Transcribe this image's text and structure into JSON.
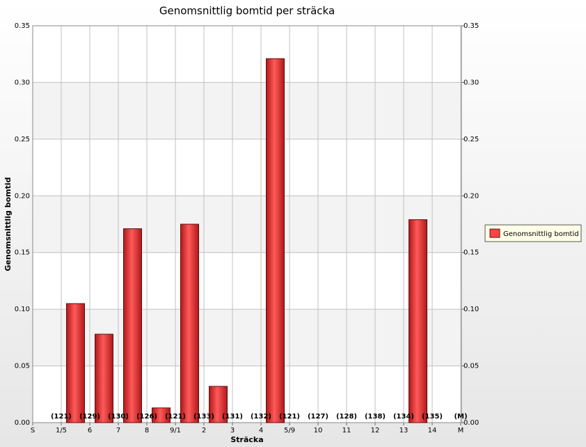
{
  "chart_data": {
    "type": "bar",
    "title": "Genomsnittlig bomtid per sträcka",
    "x_label": "Sträcka",
    "y_label": "Genomsnittlig bomtid",
    "categories": [
      "S",
      "1/5",
      "6",
      "7",
      "8",
      "9/1",
      "2",
      "3",
      "4",
      "5/9",
      "10",
      "11",
      "12",
      "13",
      "14",
      "M"
    ],
    "series": [
      {
        "name": "Genomsnittlig bomtid",
        "color": "#ff4444",
        "values": [
          null,
          0.105,
          0.078,
          0.171,
          0.013,
          0.175,
          0.032,
          null,
          0.321,
          null,
          null,
          null,
          null,
          0.179,
          null,
          null
        ]
      }
    ],
    "counts": [
      null,
      "(121)",
      "(129)",
      "(130)",
      "(126)",
      "(121)",
      "(133)",
      "(131)",
      "(132)",
      "(121)",
      "(127)",
      "(128)",
      "(138)",
      "(134)",
      "(135)",
      "(M)"
    ],
    "ylim": [
      0,
      0.35
    ],
    "yticks": [
      {
        "value": 0,
        "label": "0.00"
      },
      0.05,
      {
        "value": 0.1,
        "label": "0.10"
      },
      0.15,
      {
        "value": 0.2,
        "label": "0.20"
      },
      0.25,
      {
        "value": 0.3,
        "label": "0.30"
      },
      0.35
    ],
    "y2lim": [
      0,
      0.35
    ],
    "y2ticks": [
      {
        "value": 0,
        "label": "0.00"
      },
      0.05,
      {
        "value": 0.1,
        "label": "0.10"
      },
      0.15,
      {
        "value": 0.2,
        "label": "0.20"
      },
      0.25,
      {
        "value": 0.3,
        "label": "0.30"
      },
      0.35
    ],
    "grid": true,
    "legend": "right"
  }
}
